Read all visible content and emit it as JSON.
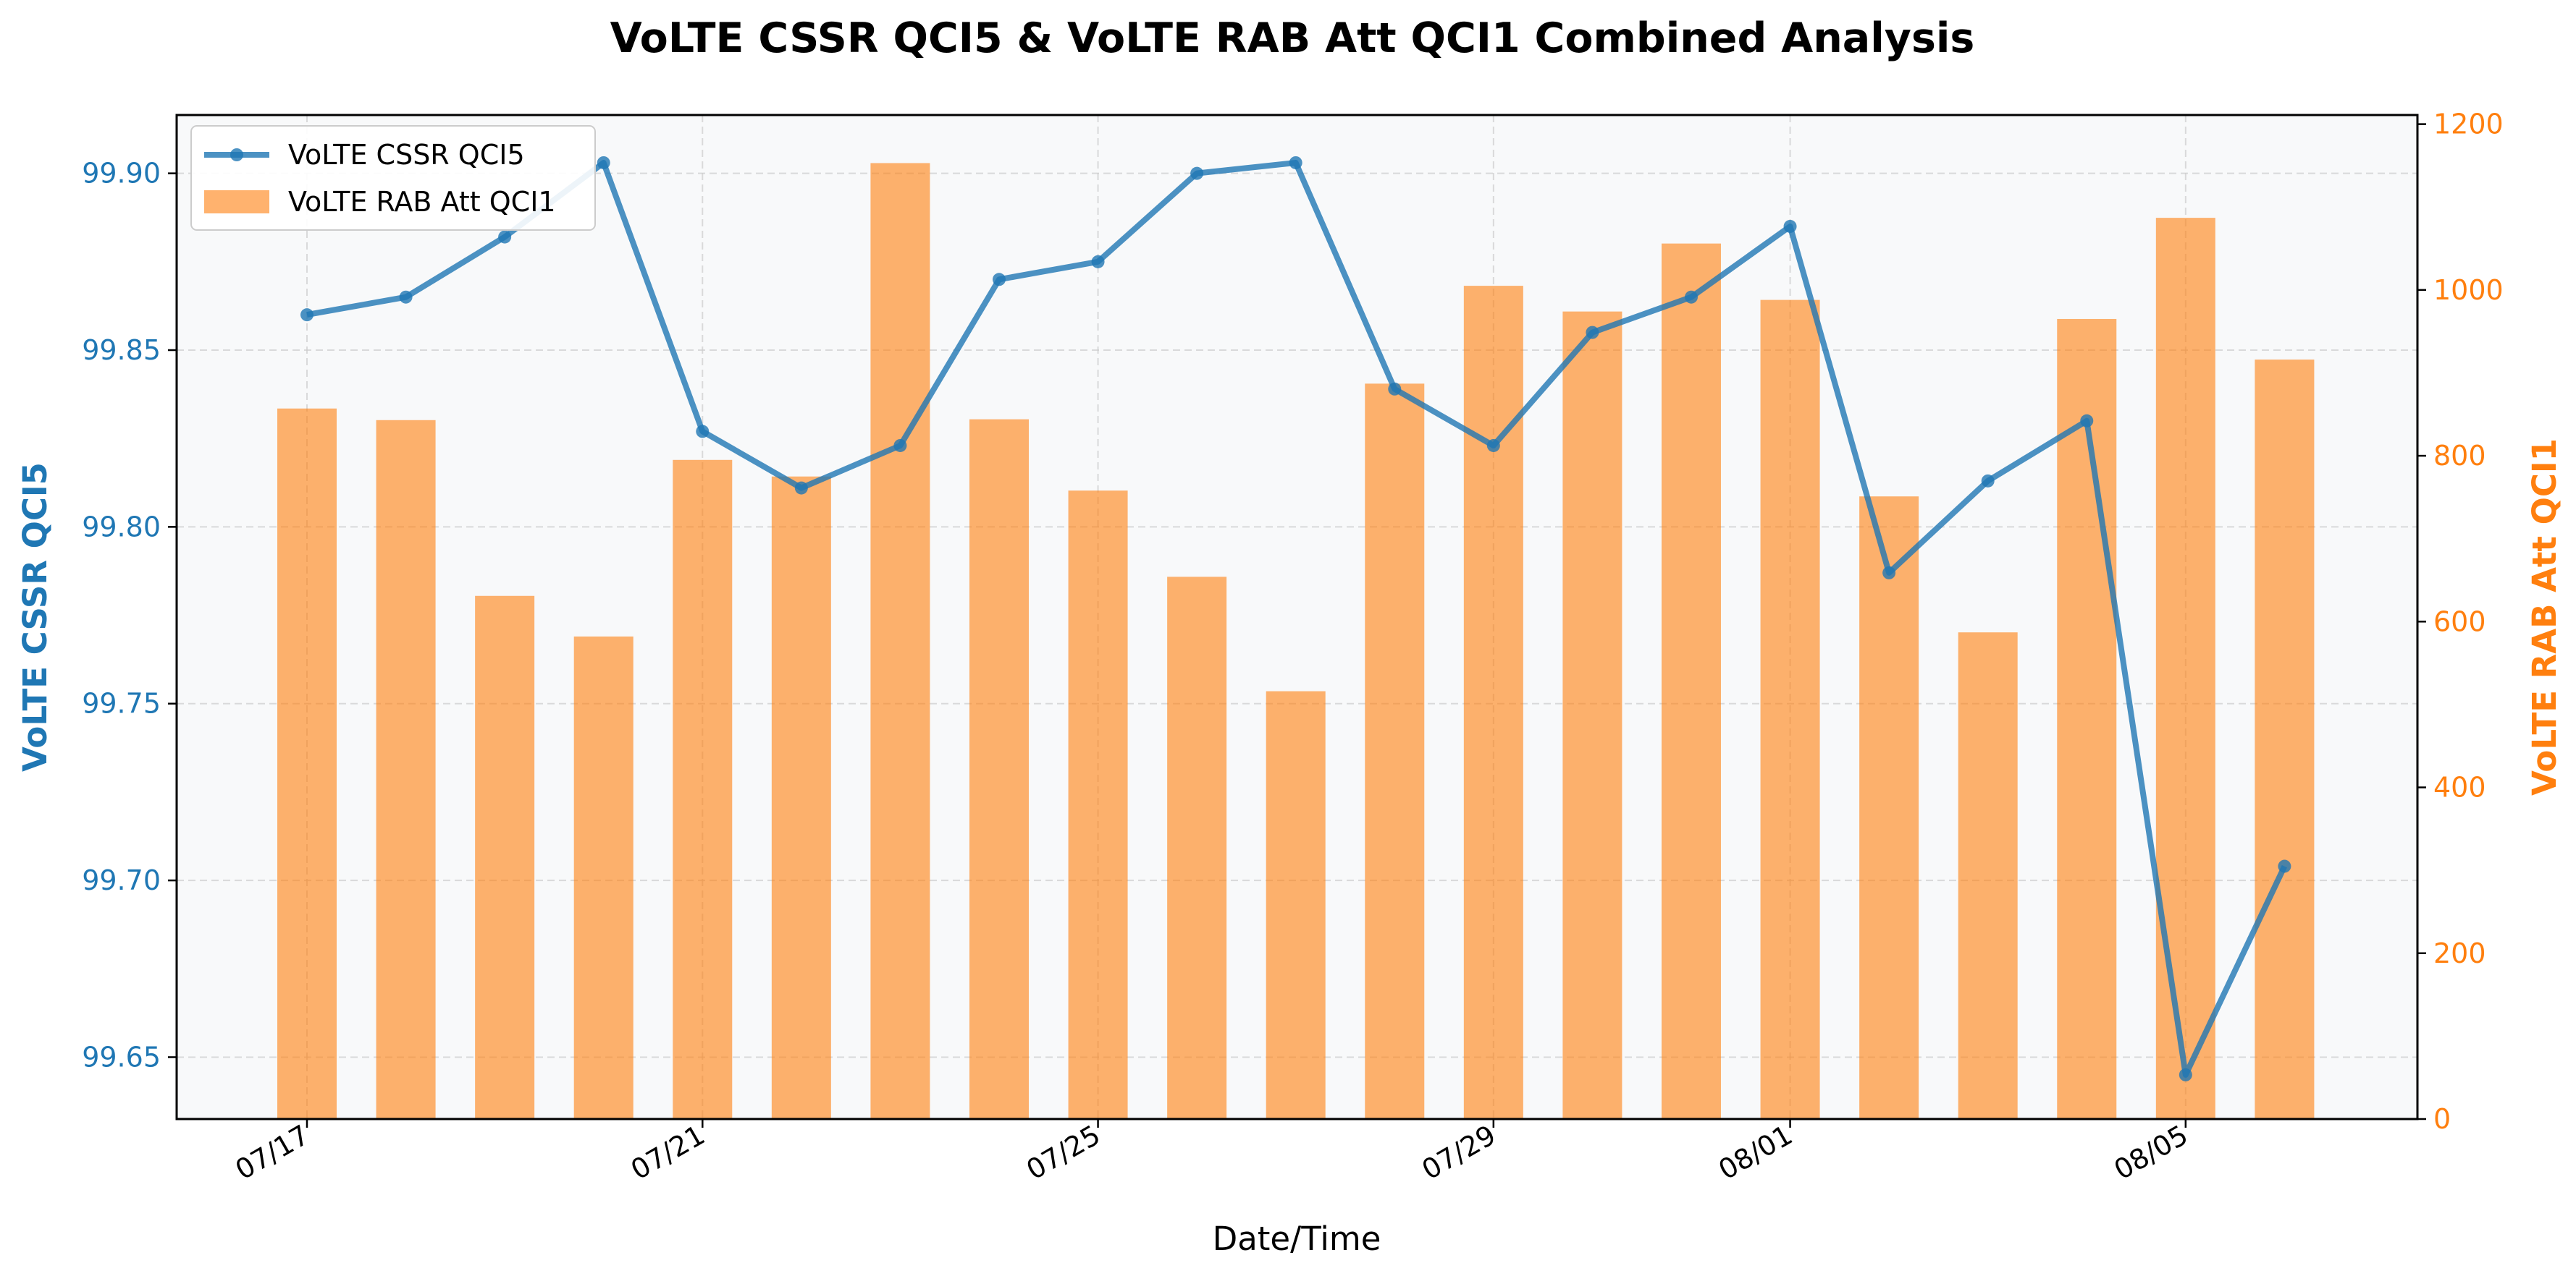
{
  "chart_data": {
    "type": "bar+line",
    "title": "VoLTE CSSR QCI5 & VoLTE RAB Att QCI1 Combined Analysis",
    "xlabel": "Date/Time",
    "x_dates": [
      "07/17",
      "07/18",
      "07/19",
      "07/20",
      "07/21",
      "07/22",
      "07/23",
      "07/24",
      "07/25",
      "07/26",
      "07/27",
      "07/28",
      "07/29",
      "07/30",
      "07/31",
      "08/01",
      "08/02",
      "08/03",
      "08/04",
      "08/05",
      "08/06"
    ],
    "x_tick_labels": [
      "07/17",
      "07/21",
      "07/25",
      "07/29",
      "08/01",
      "08/05"
    ],
    "grid": true,
    "legend_position": "top-left",
    "series": [
      {
        "name": "VoLTE CSSR QCI5",
        "type": "line",
        "axis": "left",
        "color": "#1f77b4",
        "values": [
          99.86,
          99.865,
          99.882,
          99.903,
          99.827,
          99.811,
          99.823,
          99.87,
          99.875,
          99.9,
          99.903,
          99.839,
          99.823,
          99.855,
          99.865,
          99.885,
          99.787,
          99.813,
          99.83,
          99.645,
          99.704
        ]
      },
      {
        "name": "VoLTE RAB Att QCI1",
        "type": "bar",
        "axis": "right",
        "color": "#ff7f0e",
        "values": [
          857,
          843,
          631,
          582,
          795,
          775,
          1153,
          844,
          758,
          654,
          516,
          887,
          1005,
          974,
          1056,
          988,
          751,
          587,
          965,
          1087,
          916
        ]
      }
    ],
    "left_axis": {
      "label": "VoLTE CSSR QCI5",
      "color": "#1f77b4",
      "ylim": [
        99.6325,
        99.9165
      ],
      "ticks": [
        "99.65",
        "99.70",
        "99.75",
        "99.80",
        "99.85",
        "99.90"
      ]
    },
    "right_axis": {
      "label": "VoLTE RAB Att QCI1",
      "color": "#ff7f0e",
      "ylim": [
        0,
        1211
      ],
      "ticks": [
        "0",
        "200",
        "400",
        "600",
        "800",
        "1000",
        "1200"
      ]
    }
  }
}
